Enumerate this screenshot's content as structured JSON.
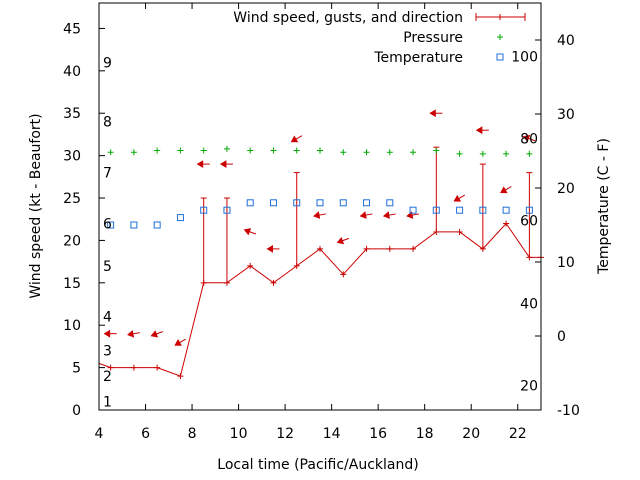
{
  "chart_data": {
    "type": "line",
    "xlabel": "Local time (Pacific/Auckland)",
    "ylabel_left": "Wind speed (kt - Beaufort)",
    "ylabel_right": "Temperature (C - F)",
    "xlim": [
      4,
      23
    ],
    "ylim_left": [
      0,
      48
    ],
    "ylim_right": [
      -10,
      45
    ],
    "x_ticks": [
      4,
      6,
      8,
      10,
      12,
      14,
      16,
      18,
      20,
      22
    ],
    "y_left_ticks": [
      0,
      5,
      10,
      15,
      20,
      25,
      30,
      35,
      40,
      45
    ],
    "y_right_ticks": [
      -10,
      0,
      10,
      20,
      30,
      40
    ],
    "beaufort_labels": [
      {
        "label": "1",
        "kt": 1
      },
      {
        "label": "2",
        "kt": 4
      },
      {
        "label": "3",
        "kt": 7
      },
      {
        "label": "4",
        "kt": 11
      },
      {
        "label": "5",
        "kt": 17
      },
      {
        "label": "6",
        "kt": 22
      },
      {
        "label": "7",
        "kt": 28
      },
      {
        "label": "8",
        "kt": 34
      },
      {
        "label": "9",
        "kt": 41
      }
    ],
    "fahrenheit_labels": [
      {
        "label": "20",
        "c": -6.7
      },
      {
        "label": "40",
        "c": 4.4
      },
      {
        "label": "60",
        "c": 15.6
      },
      {
        "label": "80",
        "c": 26.7
      },
      {
        "label": "100",
        "c": 37.8
      }
    ],
    "legend": {
      "wind": "Wind speed, gusts, and direction",
      "pressure": "Pressure",
      "temperature": "Temperature"
    },
    "colors": {
      "wind": "#cc0000",
      "pressure": "#00aa00",
      "temperature": "#1e6fd9"
    },
    "series": {
      "wind_speed": {
        "x": [
          3.9,
          4.5,
          5.5,
          6.5,
          7.5,
          8.5,
          9.5,
          10.5,
          11.5,
          12.5,
          13.5,
          14.5,
          15.5,
          16.5,
          17.5,
          18.5,
          19.5,
          20.5,
          21.5,
          22.5,
          23.0
        ],
        "y": [
          5.5,
          5,
          5,
          5,
          4,
          15,
          15,
          17,
          15,
          17,
          19,
          16,
          19,
          19,
          19,
          21,
          21,
          19,
          22,
          18,
          18
        ]
      },
      "wind_gust": {
        "x": [
          8.5,
          9.5,
          12.5,
          18.5,
          20.5,
          22.5
        ],
        "y": [
          25,
          25,
          28,
          31,
          29,
          28
        ]
      },
      "wind_direction": {
        "x": [
          4.5,
          5.5,
          6.5,
          7.5,
          8.5,
          9.5,
          10.5,
          11.5,
          12.5,
          13.5,
          14.5,
          15.5,
          16.5,
          17.5,
          18.5,
          19.5,
          20.5,
          21.5,
          22.5
        ],
        "y": [
          9,
          9,
          9,
          8,
          29,
          29,
          21,
          19,
          32,
          23,
          20,
          23,
          23,
          23,
          35,
          25,
          33,
          26,
          32
        ],
        "deg": [
          90,
          80,
          70,
          60,
          90,
          90,
          110,
          90,
          60,
          80,
          70,
          80,
          80,
          80,
          90,
          60,
          90,
          60,
          110
        ]
      },
      "pressure": {
        "x": [
          4.5,
          5.5,
          6.5,
          7.5,
          8.5,
          9.5,
          10.5,
          11.5,
          12.5,
          13.5,
          14.5,
          15.5,
          16.5,
          17.5,
          18.5,
          19.5,
          20.5,
          21.5,
          22.5
        ],
        "y": [
          30.4,
          30.4,
          30.6,
          30.6,
          30.6,
          30.8,
          30.6,
          30.6,
          30.6,
          30.6,
          30.4,
          30.4,
          30.4,
          30.4,
          30.6,
          30.2,
          30.2,
          30.2,
          30.2
        ]
      },
      "temperature": {
        "x": [
          4.5,
          5.5,
          6.5,
          7.5,
          8.5,
          9.5,
          10.5,
          11.5,
          12.5,
          13.5,
          14.5,
          15.5,
          16.5,
          17.5,
          18.5,
          19.5,
          20.5,
          21.5,
          22.5
        ],
        "y": [
          15,
          15,
          15,
          16,
          17,
          17,
          18,
          18,
          18,
          18,
          18,
          18,
          18,
          17,
          17,
          17,
          17,
          17,
          17
        ]
      }
    }
  }
}
